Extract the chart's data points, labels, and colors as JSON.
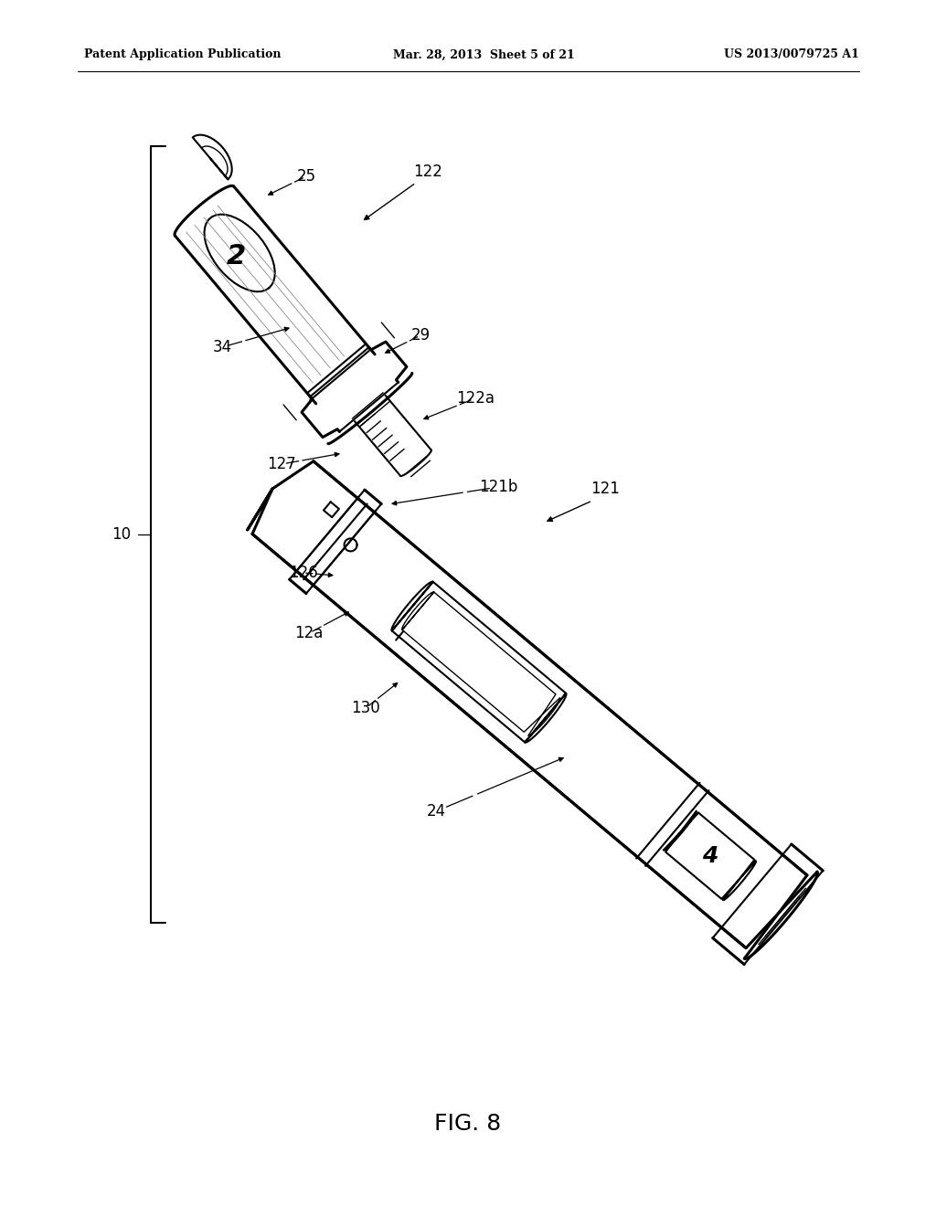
{
  "bg_color": "#ffffff",
  "fig_width": 10.24,
  "fig_height": 13.2,
  "dpi": 100,
  "header_left": "Patent Application Publication",
  "header_center": "Mar. 28, 2013  Sheet 5 of 21",
  "header_right": "US 2013/0079725 A1",
  "figure_label": "FIG. 8",
  "lc": "#000000",
  "lw_main": 2.2,
  "lw_med": 1.5,
  "lw_thin": 1.0,
  "fs_label": 12,
  "fs_header": 9,
  "fs_fig": 18
}
